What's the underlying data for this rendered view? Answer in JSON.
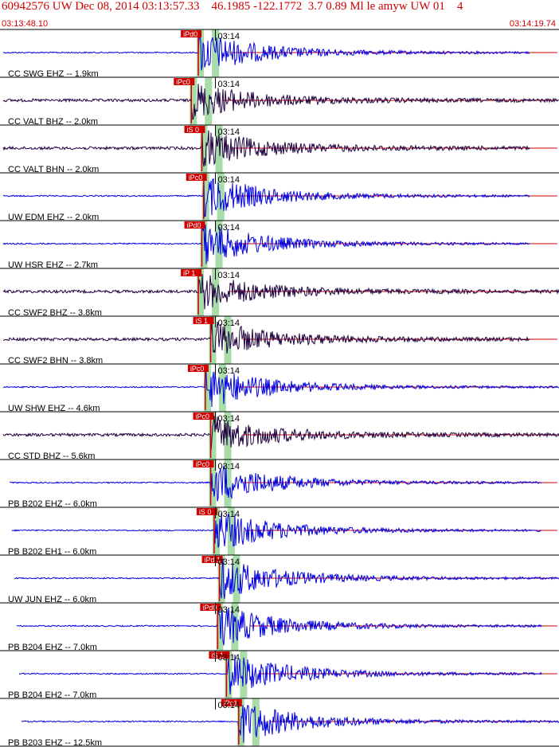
{
  "header": {
    "title": "60942576 UW Dec 08, 2014 03:13:57.33    46.1985 -122.1772  3.7 0.89 Ml le amyw UW 01    4",
    "start_time": "03:13:48.10",
    "end_time": "03:14:19.74"
  },
  "colors": {
    "accent": "#d00000",
    "blue_trace": "#0000e0",
    "dark_trace": "#200040",
    "window": "#a8dca8"
  },
  "chart_data": {
    "type": "line",
    "title": "60942576 UW Dec 08, 2014 03:13:57.33    46.1985 -122.1772  3.7 0.89 Ml le amyw UW 01    4",
    "xlabel": "",
    "ylabel": "",
    "xlim": [
      "03:13:48.10",
      "03:14:19.74"
    ],
    "x_seconds_span": 31.64,
    "minute_tick_label": "03:14",
    "grid": false,
    "traces": [
      {
        "name": "CC SWG EHZ -- 1.9km",
        "pick": "iPd0",
        "pick_time": 11.2,
        "color": "blue",
        "end": 665
      },
      {
        "name": "CC VALT BHZ -- 2.0km",
        "pick": "iPc0",
        "pick_time": 10.8,
        "color": "dark",
        "end": 702
      },
      {
        "name": "CC VALT BHN -- 2.0km",
        "pick": "iS 0",
        "pick_time": 11.4,
        "color": "dark",
        "end": 665
      },
      {
        "name": "UW EDM EHZ -- 2.0km",
        "pick": "iPc0",
        "pick_time": 11.5,
        "color": "blue",
        "end": 665
      },
      {
        "name": "UW HSR EHZ -- 2.7km",
        "pick": "iPd0",
        "pick_time": 11.4,
        "color": "blue",
        "end": 665
      },
      {
        "name": "CC SWF2 BHZ -- 3.8km",
        "pick": "iP 1",
        "pick_time": 11.2,
        "color": "dark",
        "end": 702
      },
      {
        "name": "CC SWF2 BHN -- 3.8km",
        "pick": "iS 1",
        "pick_time": 11.9,
        "color": "dark",
        "end": 665
      },
      {
        "name": "UW SHW EHZ -- 4.6km",
        "pick": "iPc0",
        "pick_time": 11.6,
        "color": "blue",
        "end": 702
      },
      {
        "name": "CC STD BHZ -- 5.6km",
        "pick": "iPc0",
        "pick_time": 11.9,
        "color": "dark",
        "end": 702
      },
      {
        "name": "PB B202 EHZ -- 6.0km",
        "pick": "iPc0",
        "pick_time": 11.9,
        "color": "blue",
        "end": 680
      },
      {
        "name": "PB B202 EH1 -- 6.0km",
        "pick": "iS 0",
        "pick_time": 12.1,
        "color": "blue",
        "end": 680
      },
      {
        "name": "UW JUN EHZ -- 6.0km",
        "pick": "iPd 1",
        "pick_time": 12.4,
        "color": "blue",
        "end": 702
      },
      {
        "name": "PB B204 EHZ -- 7.0km",
        "pick": "iPd0",
        "pick_time": 12.3,
        "color": "blue",
        "end": 680
      },
      {
        "name": "PB B204 EH2 -- 7.0km",
        "pick": "iS 1",
        "pick_time": 12.8,
        "color": "blue",
        "end": 680
      },
      {
        "name": "PB B203 EHZ -- 12.5km",
        "pick": "iPc1",
        "pick_time": 13.5,
        "color": "blue",
        "end": 702
      }
    ]
  }
}
